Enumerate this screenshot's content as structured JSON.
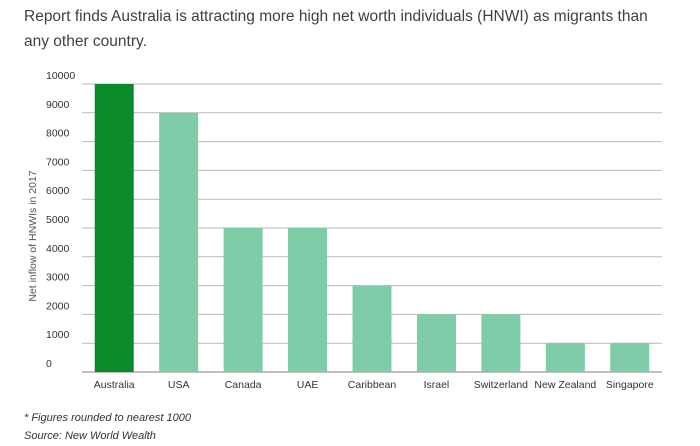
{
  "headline": "Report finds Australia is attracting more high net worth individuals (HNWI) as migrants than any other country.",
  "footnote": "* Figures rounded to nearest 1000",
  "source": "Source:  New World Wealth",
  "colors": {
    "highlight": "#0b8a2b",
    "bar": "#7fcca8",
    "gridline": "#b8b8b8"
  },
  "chart_data": {
    "type": "bar",
    "title": "",
    "xlabel": "",
    "ylabel": "Net inflow of HNWIs in 2017",
    "categories": [
      "Australia",
      "USA",
      "Canada",
      "UAE",
      "Caribbean",
      "Israel",
      "Switzerland",
      "New Zealand",
      "Singapore"
    ],
    "values": [
      10000,
      9000,
      5000,
      5000,
      3000,
      2000,
      2000,
      1000,
      1000
    ],
    "highlight_category": "Australia",
    "ylim": [
      0,
      10000
    ],
    "yticks": [
      0,
      1000,
      2000,
      3000,
      4000,
      5000,
      6000,
      7000,
      8000,
      9000,
      10000
    ],
    "grid": true,
    "legend": "none"
  }
}
